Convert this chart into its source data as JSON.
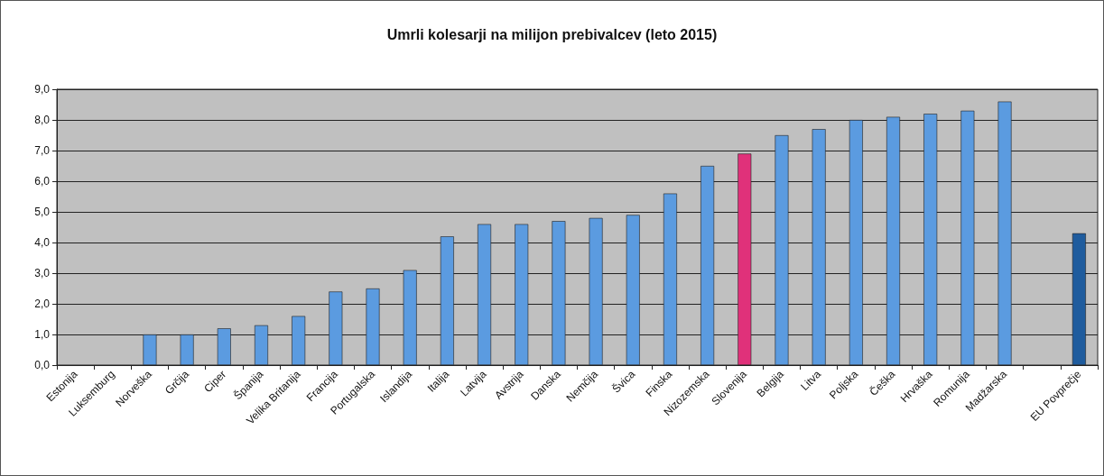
{
  "chart_data": {
    "type": "bar",
    "title": "Umrli kolesarji na milijon prebivalcev (leto 2015)",
    "categories": [
      "Estonija",
      "Luksemburg",
      "Norveška",
      "Grčija",
      "Ciper",
      "Španija",
      "Velika Britanija",
      "Francija",
      "Portugalska",
      "Islandija",
      "Italija",
      "Latvija",
      "Avstrija",
      "Danska",
      "Nemčija",
      "Švica",
      "Finska",
      "Nizozemska",
      "Slovenija",
      "Belgija",
      "Litva",
      "Poljska",
      "Češka",
      "Hrvaška",
      "Romunija",
      "Madžarska",
      null,
      "EU Povprečje"
    ],
    "values": [
      0,
      0,
      1.0,
      1.0,
      1.2,
      1.3,
      1.6,
      2.4,
      2.5,
      3.1,
      4.2,
      4.6,
      4.6,
      4.7,
      4.8,
      4.9,
      5.6,
      6.5,
      6.9,
      7.5,
      7.7,
      8.0,
      8.1,
      8.2,
      8.3,
      8.6,
      null,
      4.3
    ],
    "colors": [
      "#5b9be0",
      "#5b9be0",
      "#5b9be0",
      "#5b9be0",
      "#5b9be0",
      "#5b9be0",
      "#5b9be0",
      "#5b9be0",
      "#5b9be0",
      "#5b9be0",
      "#5b9be0",
      "#5b9be0",
      "#5b9be0",
      "#5b9be0",
      "#5b9be0",
      "#5b9be0",
      "#5b9be0",
      "#5b9be0",
      "#e0317a",
      "#5b9be0",
      "#5b9be0",
      "#5b9be0",
      "#5b9be0",
      "#5b9be0",
      "#5b9be0",
      "#5b9be0",
      "#5b9be0",
      "#1f5c9e"
    ],
    "ylim": [
      0,
      9
    ],
    "yticks": [
      {
        "value": 0,
        "label": "0,0"
      },
      {
        "value": 1,
        "label": "1,0"
      },
      {
        "value": 2,
        "label": "2,0"
      },
      {
        "value": 3,
        "label": "3,0"
      },
      {
        "value": 4,
        "label": "4,0"
      },
      {
        "value": 5,
        "label": "5,0"
      },
      {
        "value": 6,
        "label": "6,0"
      },
      {
        "value": 7,
        "label": "7,0"
      },
      {
        "value": 8,
        "label": "8,0"
      },
      {
        "value": 9,
        "label": "9,0"
      }
    ],
    "grid": "y"
  }
}
